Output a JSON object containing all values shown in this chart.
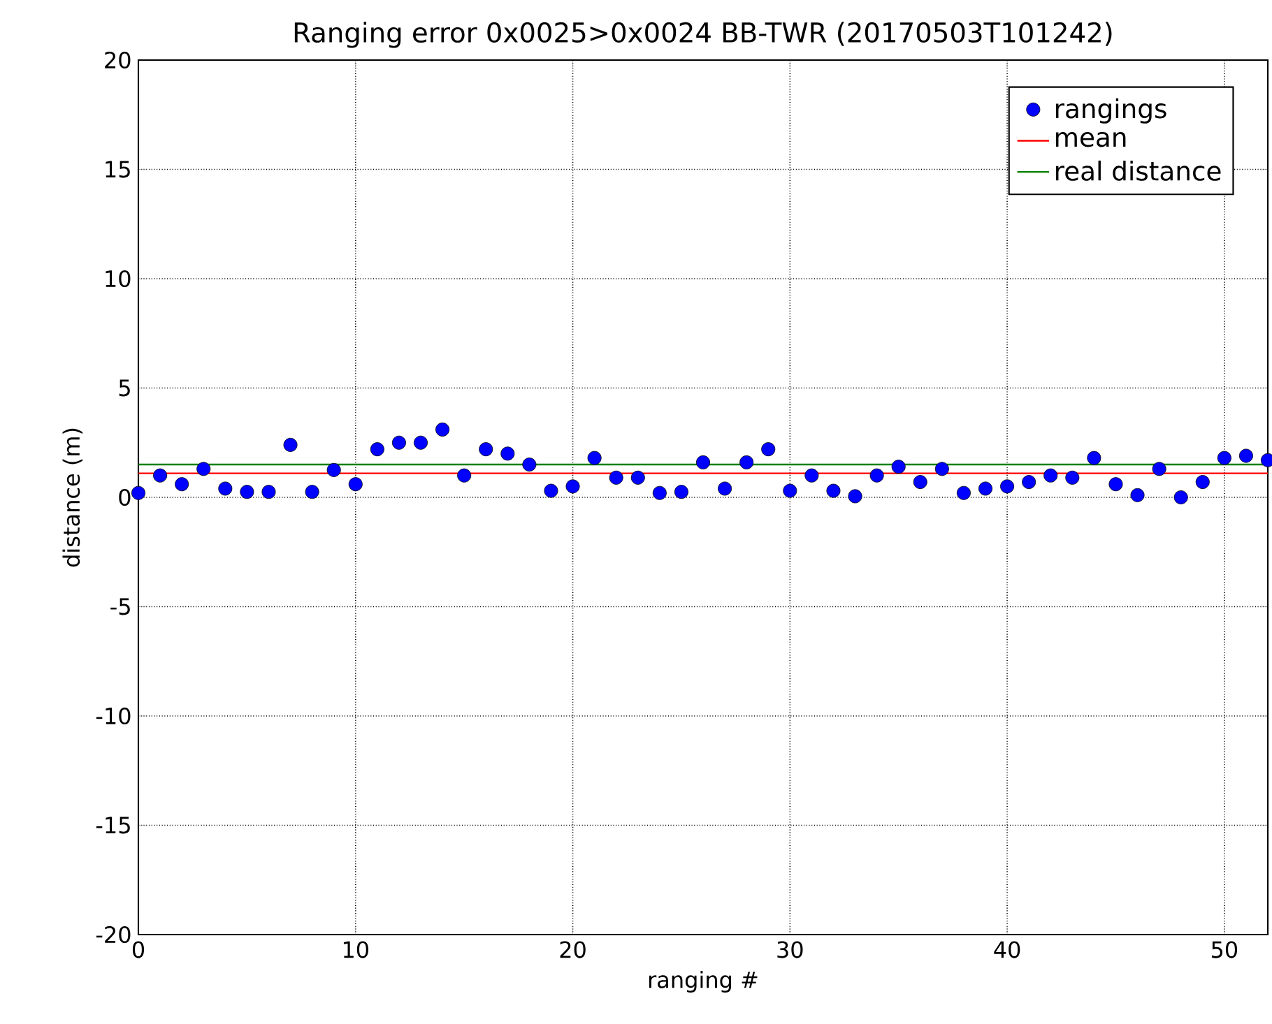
{
  "chart_data": {
    "type": "scatter",
    "title": "Ranging error 0x0025>0x0024 BB-TWR (20170503T101242)",
    "xlabel": "ranging #",
    "ylabel": "distance (m)",
    "xlim": [
      0,
      52
    ],
    "ylim": [
      -20,
      20
    ],
    "xticks": [
      0,
      10,
      20,
      30,
      40,
      50
    ],
    "yticks": [
      -20,
      -15,
      -10,
      -5,
      0,
      5,
      10,
      15,
      20
    ],
    "grid": true,
    "legend": "top right",
    "marker": "circle",
    "series": [
      {
        "name": "rangings",
        "color": "#0000ff",
        "x": [
          0,
          1,
          2,
          3,
          4,
          5,
          6,
          7,
          8,
          9,
          10,
          11,
          12,
          13,
          14,
          15,
          16,
          17,
          18,
          19,
          20,
          21,
          22,
          23,
          24,
          25,
          26,
          27,
          28,
          29,
          30,
          31,
          32,
          33,
          34,
          35,
          36,
          37,
          38,
          39,
          40,
          41,
          42,
          43,
          44,
          45,
          46,
          47,
          48,
          49,
          50,
          51,
          52
        ],
        "values": [
          0.2,
          1.0,
          0.6,
          1.3,
          0.4,
          0.25,
          0.25,
          2.4,
          0.25,
          1.25,
          0.6,
          2.2,
          2.5,
          2.5,
          3.1,
          1.0,
          2.2,
          2.0,
          1.5,
          0.3,
          0.5,
          1.8,
          0.9,
          0.9,
          0.2,
          0.25,
          1.6,
          0.4,
          1.6,
          2.2,
          0.3,
          1.0,
          0.3,
          0.05,
          1.0,
          1.4,
          0.7,
          1.3,
          0.2,
          0.4,
          0.5,
          0.7,
          1.0,
          0.9,
          1.8,
          0.6,
          0.1,
          1.3,
          0.0,
          0.7,
          1.8,
          1.9,
          1.7
        ]
      },
      {
        "name": "mean",
        "type": "line",
        "color": "#ff0000",
        "marker": "none",
        "x": [
          0,
          52
        ],
        "values": [
          1.1,
          1.1
        ]
      },
      {
        "name": "real distance",
        "type": "line",
        "color": "#008000",
        "marker": "none",
        "x": [
          0,
          52
        ],
        "values": [
          1.5,
          1.5
        ]
      }
    ]
  }
}
